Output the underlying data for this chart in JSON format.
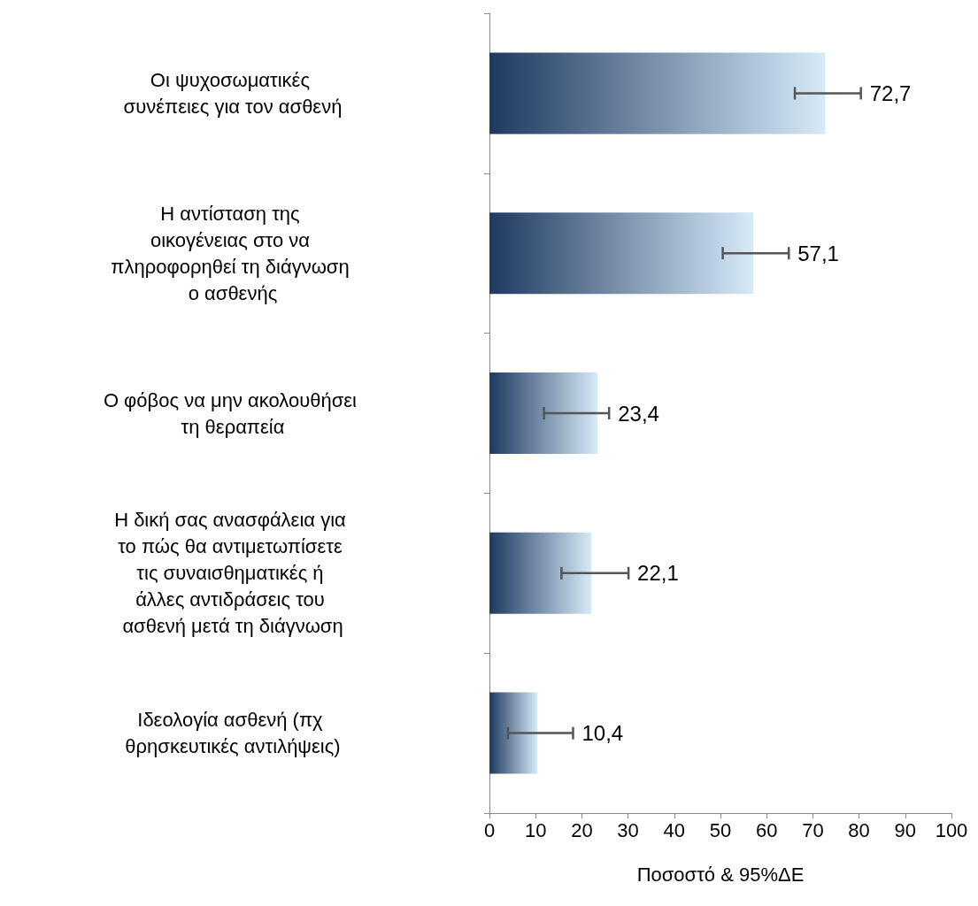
{
  "chart_data": {
    "type": "bar",
    "orientation": "horizontal",
    "xlabel": "Ποσοστό & 95%ΔΕ",
    "categories": [
      "Οι ψυχοσωματικές συνέπειες για τον ασθενή",
      "Η αντίσταση της οικογένειας στο να πληροφορηθεί τη διάγνωση ο ασθενής",
      "Ο φόβος να μην ακολουθήσει τη θεραπεία",
      "Η δική σας ανασφάλεια για το πώς θα αντιμετωπίσετε τις συναισθηματικές ή άλλες αντιδράσεις του ασθενή μετά τη διάγνωση",
      "Ιδεολογία ασθενή (πχ θρησκευτικές αντιλήψεις)"
    ],
    "values": [
      72.7,
      57.1,
      23.4,
      22.1,
      10.4
    ],
    "value_labels": [
      "72,7",
      "57,1",
      "23,4",
      "22,1",
      "10,4"
    ],
    "errors": [
      [
        66.1,
        80.4
      ],
      [
        50.5,
        64.8
      ],
      [
        11.8,
        25.9
      ],
      [
        15.6,
        30.1
      ],
      [
        4.0,
        18.1
      ]
    ],
    "color": "#1f3a60",
    "xlim": [
      0,
      100
    ],
    "xticks": [
      0,
      10,
      20,
      30,
      40,
      50,
      60,
      70,
      80,
      90,
      100
    ],
    "grid": false
  }
}
